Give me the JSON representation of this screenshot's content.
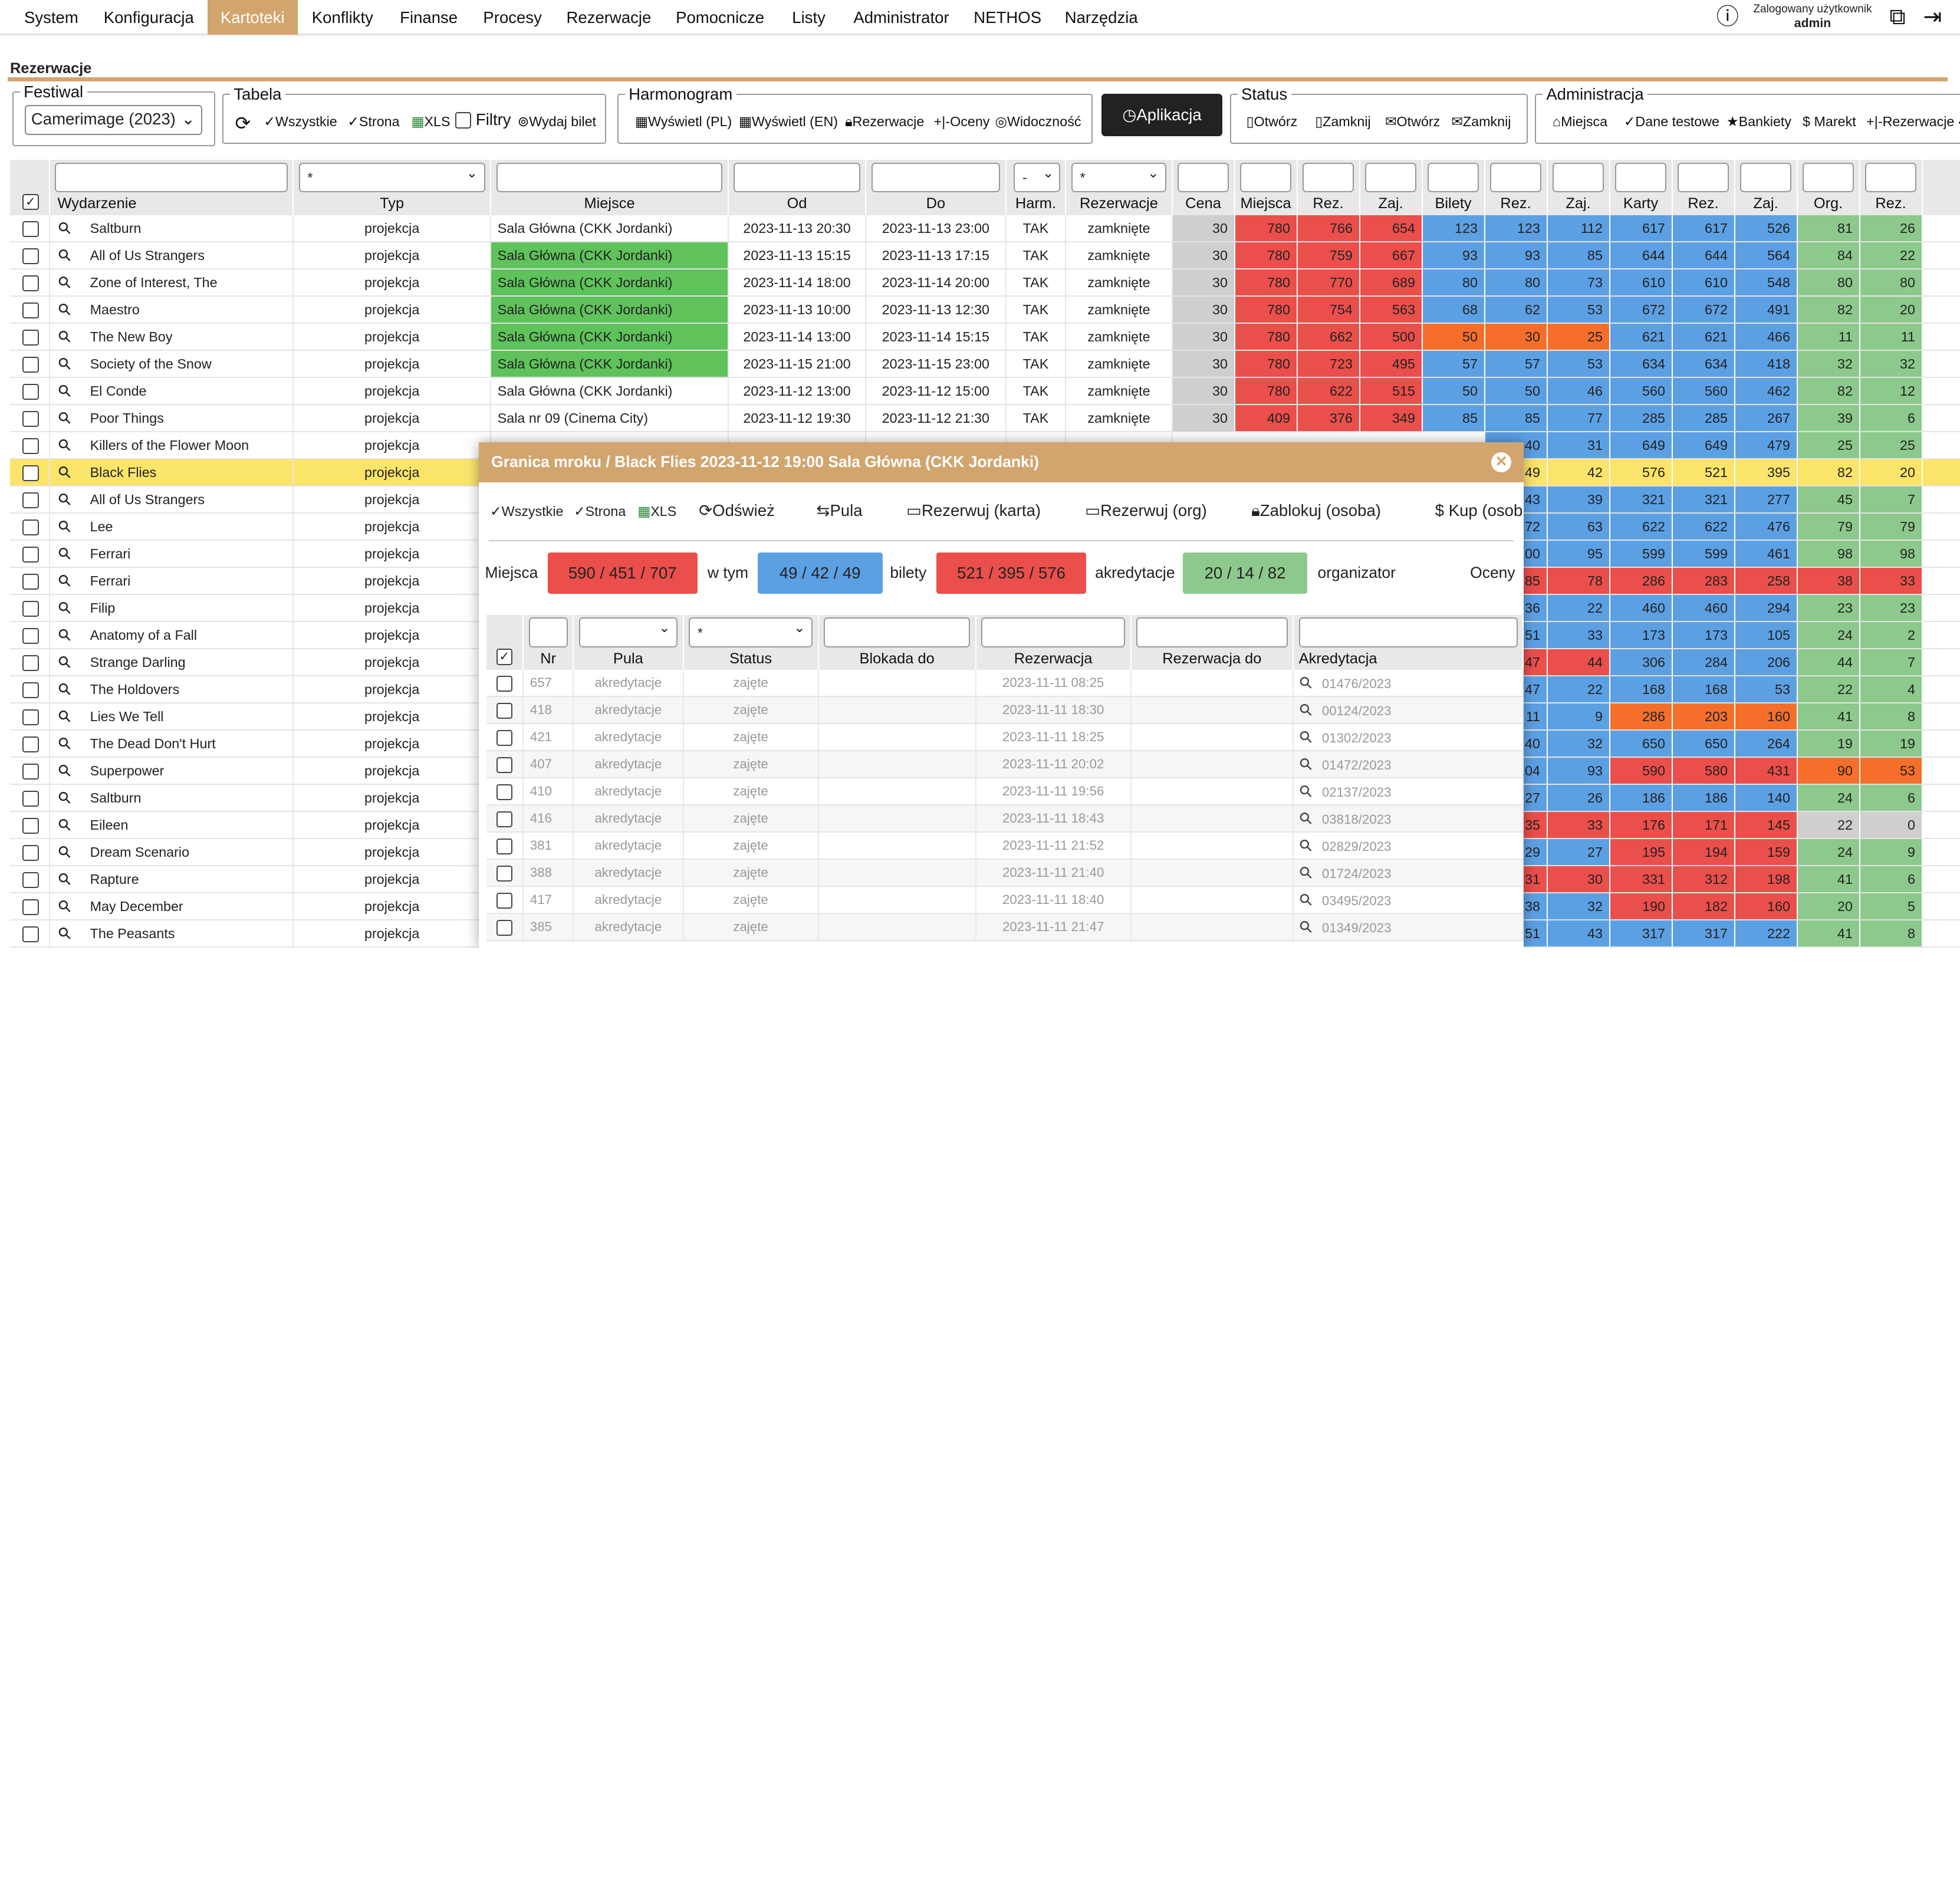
{
  "nav": {
    "items": [
      "System",
      "Konfiguracja",
      "Kartoteki",
      "Konflikty",
      "Finanse",
      "Procesy",
      "Rezerwacje",
      "Pomocnicze",
      "Listy",
      "Administrator",
      "NETHOS",
      "Narzędzia"
    ],
    "active": "Kartoteki",
    "user_label": "Zalogowany użytkownik",
    "user_name": "admin"
  },
  "page_title": "Rezerwacje",
  "festiwal": {
    "legend": "Festiwal",
    "selected": "Camerimage (2023)"
  },
  "tabela": {
    "legend": "Tabela",
    "all": "Wszystkie",
    "page": "Strona",
    "xls": "XLS",
    "filters": "Filtry",
    "ticket": "Wydaj bilet"
  },
  "harmonogram": {
    "legend": "Harmonogram",
    "show_pl": "Wyświetl (PL)",
    "show_en": "Wyświetl (EN)",
    "reservations": "Rezerwacje",
    "ratings": "Oceny",
    "visibility": "Widoczność"
  },
  "aplikacja": "Aplikacja",
  "status": {
    "legend": "Status",
    "open1": "Otwórz",
    "close1": "Zamknij",
    "open2": "Otwórz",
    "close2": "Zamknij"
  },
  "administracja": {
    "legend": "Administracja",
    "places": "Miejsca",
    "test_data": "Dane testowe",
    "banquets": "Bankiety",
    "market": "Marekt",
    "reservations": "Rezerwacje"
  },
  "table": {
    "filters": {
      "typ": "*",
      "harm": "-",
      "rez": "*"
    },
    "headers": [
      "Wydarzenie",
      "Typ",
      "Miejsce",
      "Od",
      "Do",
      "Harm.",
      "Rezerwacje",
      "Cena",
      "Miejsca",
      "Rez.",
      "Zaj.",
      "Bilety",
      "Rez.",
      "Zaj.",
      "Karty",
      "Rez.",
      "Zaj.",
      "Org.",
      "Rez."
    ],
    "rows": [
      [
        "Saltburn",
        "projekcja",
        "Sala Główna (CKK Jordanki)",
        "2023-11-13 20:30",
        "2023-11-13 23:00",
        "TAK",
        "zamknięte",
        "30",
        "780",
        "766",
        "654",
        "123",
        "123",
        "112",
        "617",
        "617",
        "526",
        "81",
        "26"
      ],
      [
        "All of Us Strangers",
        "projekcja",
        "Sala Główna (CKK Jordanki)",
        "2023-11-13 15:15",
        "2023-11-13 17:15",
        "TAK",
        "zamknięte",
        "30",
        "780",
        "759",
        "667",
        "93",
        "93",
        "85",
        "644",
        "644",
        "564",
        "84",
        "22"
      ],
      [
        "Zone of Interest, The",
        "projekcja",
        "Sala Główna (CKK Jordanki)",
        "2023-11-14 18:00",
        "2023-11-14 20:00",
        "TAK",
        "zamknięte",
        "30",
        "780",
        "770",
        "689",
        "80",
        "80",
        "73",
        "610",
        "610",
        "548",
        "80",
        "80"
      ],
      [
        "Maestro",
        "projekcja",
        "Sala Główna (CKK Jordanki)",
        "2023-11-13 10:00",
        "2023-11-13 12:30",
        "TAK",
        "zamknięte",
        "30",
        "780",
        "754",
        "563",
        "68",
        "62",
        "53",
        "672",
        "672",
        "491",
        "82",
        "20"
      ],
      [
        "The New Boy",
        "projekcja",
        "Sala Główna (CKK Jordanki)",
        "2023-11-14 13:00",
        "2023-11-14 15:15",
        "TAK",
        "zamknięte",
        "30",
        "780",
        "662",
        "500",
        "50",
        "30",
        "25",
        "621",
        "621",
        "466",
        "11",
        "11"
      ],
      [
        "Society of the Snow",
        "projekcja",
        "Sala Główna (CKK Jordanki)",
        "2023-11-15 21:00",
        "2023-11-15 23:00",
        "TAK",
        "zamknięte",
        "30",
        "780",
        "723",
        "495",
        "57",
        "57",
        "53",
        "634",
        "634",
        "418",
        "32",
        "32"
      ],
      [
        "El Conde",
        "projekcja",
        "Sala Główna (CKK Jordanki)",
        "2023-11-12 13:00",
        "2023-11-12 15:00",
        "TAK",
        "zamknięte",
        "30",
        "780",
        "622",
        "515",
        "50",
        "50",
        "46",
        "560",
        "560",
        "462",
        "82",
        "12"
      ],
      [
        "Poor Things",
        "projekcja",
        "Sala nr 09 (Cinema City)",
        "2023-11-12 19:30",
        "2023-11-12 21:30",
        "TAK",
        "zamknięte",
        "30",
        "409",
        "376",
        "349",
        "85",
        "85",
        "77",
        "285",
        "285",
        "267",
        "39",
        "6"
      ],
      [
        "Killers of the Flower Moon",
        "projekcja",
        "",
        "",
        "",
        "",
        "",
        "",
        "",
        "",
        "",
        "",
        "40",
        "31",
        "649",
        "649",
        "479",
        "25",
        "25"
      ],
      [
        "Black Flies",
        "projekcja",
        "",
        "",
        "",
        "",
        "",
        "",
        "",
        "",
        "",
        "",
        "49",
        "42",
        "576",
        "521",
        "395",
        "82",
        "20"
      ],
      [
        "All of Us Strangers",
        "projekcja",
        "",
        "",
        "",
        "",
        "",
        "",
        "",
        "",
        "",
        "",
        "43",
        "39",
        "321",
        "321",
        "277",
        "45",
        "7"
      ],
      [
        "Lee",
        "projekcja",
        "",
        "",
        "",
        "",
        "",
        "",
        "",
        "",
        "",
        "",
        "72",
        "63",
        "622",
        "622",
        "476",
        "79",
        "79"
      ],
      [
        "Ferrari",
        "projekcja",
        "",
        "",
        "",
        "",
        "",
        "",
        "",
        "",
        "",
        "",
        "100",
        "95",
        "599",
        "599",
        "461",
        "98",
        "98"
      ],
      [
        "Ferrari",
        "projekcja",
        "",
        "",
        "",
        "",
        "",
        "",
        "",
        "",
        "",
        "",
        "85",
        "78",
        "286",
        "283",
        "258",
        "38",
        "33"
      ],
      [
        "Filip",
        "projekcja",
        "",
        "",
        "",
        "",
        "",
        "",
        "",
        "",
        "",
        "",
        "36",
        "22",
        "460",
        "460",
        "294",
        "23",
        "23"
      ],
      [
        "Anatomy of a Fall",
        "projekcja",
        "",
        "",
        "",
        "",
        "",
        "",
        "",
        "",
        "",
        "",
        "51",
        "33",
        "173",
        "173",
        "105",
        "24",
        "2"
      ],
      [
        "Strange Darling",
        "projekcja",
        "",
        "",
        "",
        "",
        "",
        "",
        "",
        "",
        "",
        "",
        "47",
        "44",
        "306",
        "284",
        "206",
        "44",
        "7"
      ],
      [
        "The Holdovers",
        "projekcja",
        "",
        "",
        "",
        "",
        "",
        "",
        "",
        "",
        "",
        "",
        "47",
        "22",
        "168",
        "168",
        "53",
        "22",
        "4"
      ],
      [
        "Lies We Tell",
        "projekcja",
        "",
        "",
        "",
        "",
        "",
        "",
        "",
        "",
        "",
        "",
        "11",
        "9",
        "286",
        "203",
        "160",
        "41",
        "8"
      ],
      [
        "The Dead Don't Hurt",
        "projekcja",
        "",
        "",
        "",
        "",
        "",
        "",
        "",
        "",
        "",
        "",
        "40",
        "32",
        "650",
        "650",
        "264",
        "19",
        "19"
      ],
      [
        "Superpower",
        "projekcja",
        "",
        "",
        "",
        "",
        "",
        "",
        "",
        "",
        "",
        "",
        "104",
        "93",
        "590",
        "580",
        "431",
        "90",
        "53"
      ],
      [
        "Saltburn",
        "projekcja",
        "",
        "",
        "",
        "",
        "",
        "",
        "",
        "",
        "",
        "",
        "27",
        "26",
        "186",
        "186",
        "140",
        "24",
        "6"
      ],
      [
        "Eileen",
        "projekcja",
        "",
        "",
        "",
        "",
        "",
        "",
        "",
        "",
        "",
        "",
        "35",
        "33",
        "176",
        "171",
        "145",
        "22",
        "0"
      ],
      [
        "Dream Scenario",
        "projekcja",
        "",
        "",
        "",
        "",
        "",
        "",
        "",
        "",
        "",
        "",
        "29",
        "27",
        "195",
        "194",
        "159",
        "24",
        "9"
      ],
      [
        "Rapture",
        "projekcja",
        "",
        "",
        "",
        "",
        "",
        "",
        "",
        "",
        "",
        "",
        "31",
        "30",
        "331",
        "312",
        "198",
        "41",
        "6"
      ],
      [
        "May December",
        "projekcja",
        "",
        "",
        "",
        "",
        "",
        "",
        "",
        "",
        "",
        "",
        "38",
        "32",
        "190",
        "182",
        "160",
        "20",
        "5"
      ],
      [
        "The Peasants",
        "projekcja",
        "",
        "",
        "",
        "",
        "",
        "",
        "",
        "",
        "",
        "",
        "51",
        "43",
        "317",
        "317",
        "222",
        "41",
        "8"
      ]
    ]
  },
  "modal": {
    "title": "Granica mroku / Black Flies 2023-11-12 19:00 Sala Główna (CKK Jordanki)",
    "toolbar": {
      "all": "Wszystkie",
      "page": "Strona",
      "xls": "XLS",
      "refresh": "Odśwież",
      "pool": "Pula",
      "reserve_card": "Rezerwuj (karta)",
      "reserve_org": "Rezerwuj (org)",
      "block_person": "Zablokuj (osoba)",
      "buy": "Kup (osob"
    },
    "summary": {
      "places_label": "Miejsca",
      "places": "590 / 451 / 707",
      "incl_label": "w tym",
      "tickets": "49 / 42 / 49",
      "tickets_label": "bilety",
      "accreditations": "521 / 395 / 576",
      "accreditations_label": "akredytacje",
      "organizer": "20 / 14 / 82",
      "organizer_label": "organizator",
      "ratings_label": "Oceny"
    },
    "filters": {
      "status": "*"
    },
    "headers": [
      "Nr",
      "Pula",
      "Status",
      "Blokada do",
      "Rezerwacja",
      "Rezerwacja do",
      "Akredytacja"
    ],
    "rows": [
      [
        "657",
        "akredytacje",
        "zajęte",
        "",
        "2023-11-11 08:25",
        "",
        "01476/2023"
      ],
      [
        "418",
        "akredytacje",
        "zajęte",
        "",
        "2023-11-11 18:30",
        "",
        "00124/2023"
      ],
      [
        "421",
        "akredytacje",
        "zajęte",
        "",
        "2023-11-11 18:25",
        "",
        "01302/2023"
      ],
      [
        "407",
        "akredytacje",
        "zajęte",
        "",
        "2023-11-11 20:02",
        "",
        "01472/2023"
      ],
      [
        "410",
        "akredytacje",
        "zajęte",
        "",
        "2023-11-11 19:56",
        "",
        "02137/2023"
      ],
      [
        "416",
        "akredytacje",
        "zajęte",
        "",
        "2023-11-11 18:43",
        "",
        "03818/2023"
      ],
      [
        "381",
        "akredytacje",
        "zajęte",
        "",
        "2023-11-11 21:52",
        "",
        "02829/2023"
      ],
      [
        "388",
        "akredytacje",
        "zajęte",
        "",
        "2023-11-11 21:40",
        "",
        "01724/2023"
      ],
      [
        "417",
        "akredytacje",
        "zajęte",
        "",
        "2023-11-11 18:40",
        "",
        "03495/2023"
      ],
      [
        "385",
        "akredytacje",
        "zajęte",
        "",
        "2023-11-11 21:47",
        "",
        "01349/2023"
      ]
    ]
  },
  "colors": {
    "accent": "#d2a56e",
    "red": "#ea4f4b",
    "blue": "#5ca0e4",
    "orange": "#f56f2a",
    "green": "#8dc98d",
    "green_place": "#5fc25b",
    "highlight": "#fbe46a"
  },
  "highlight_row": "Black Flies",
  "green_place_rows": [
    1,
    2,
    3,
    4,
    5
  ]
}
